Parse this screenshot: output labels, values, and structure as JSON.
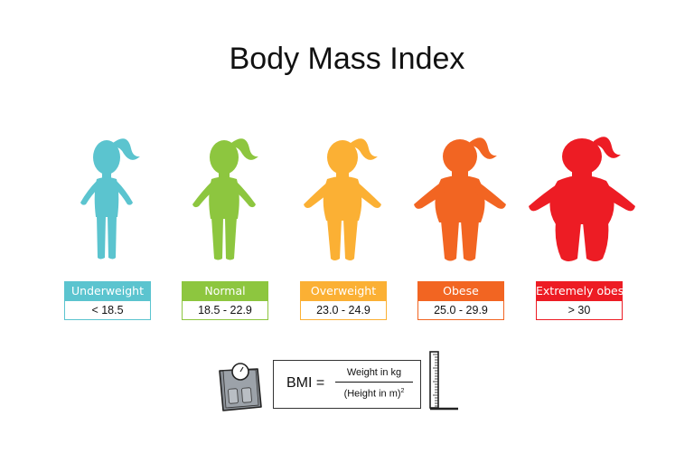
{
  "title": "Body Mass Index",
  "categories": [
    {
      "label": "Underweight",
      "range": "< 18.5",
      "color": "#5bc4cf"
    },
    {
      "label": "Normal",
      "range": "18.5 - 22.9",
      "color": "#8dc63f"
    },
    {
      "label": "Overweight",
      "range": "23.0 - 24.9",
      "color": "#fbb034"
    },
    {
      "label": "Obese",
      "range": "25.0 - 29.9",
      "color": "#f26522"
    },
    {
      "label": "Extremely obese",
      "range": "> 30",
      "color": "#ed1c24"
    }
  ],
  "formula": {
    "lhs": "BMI =",
    "numerator": "Weight in kg",
    "denominator": "(Height in m)",
    "exponent": "2"
  },
  "icons": [
    "bathroom-scale-icon",
    "height-ruler-icon"
  ]
}
